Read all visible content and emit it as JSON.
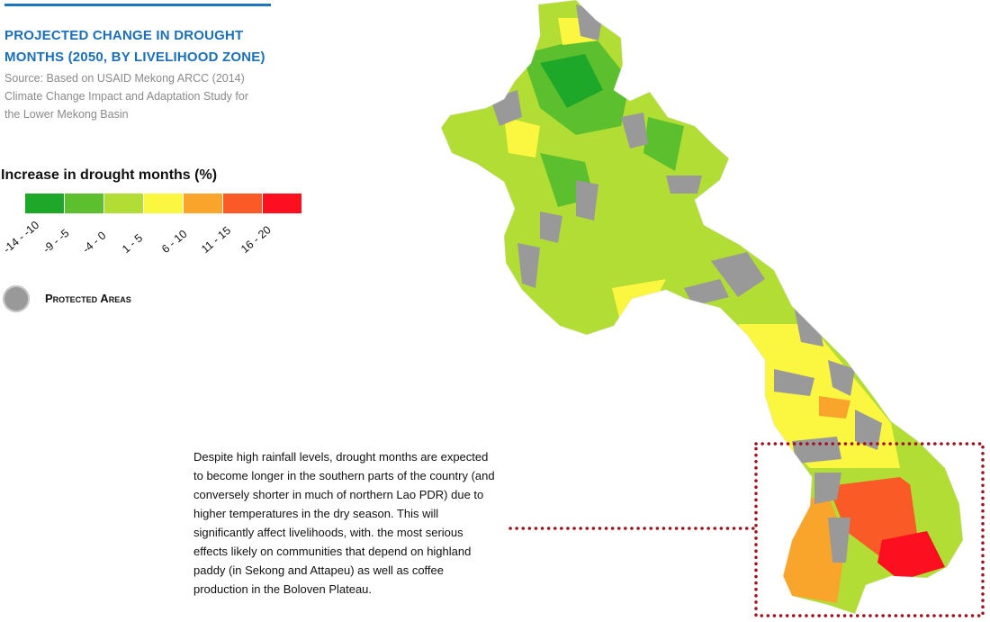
{
  "header": {
    "title_lines": [
      "PROJECTED CHANGE IN DROUGHT",
      "MONTHS (2050, BY LIVELIHOOD ZONE)"
    ],
    "source_lines": [
      "Source: Based on USAID Mekong ARCC (2014)",
      "Climate Change Impact and Adaptation Study for",
      "the Lower Mekong Basin"
    ]
  },
  "legend": {
    "title": "Increase in drought months (%)",
    "classes": [
      {
        "label": "-14 - -10",
        "color": "#1ea82a"
      },
      {
        "label": "-9 - -5",
        "color": "#5cbf2e"
      },
      {
        "label": "-4 - 0",
        "color": "#b2dd35"
      },
      {
        "label": "1 - 5",
        "color": "#fbf640"
      },
      {
        "label": "6 - 10",
        "color": "#f9a52c"
      },
      {
        "label": "11 - 15",
        "color": "#f95a26"
      },
      {
        "label": "16 - 20",
        "color": "#fc1020"
      }
    ],
    "protected_areas": {
      "label": "Protected Areas",
      "color": "#999999"
    }
  },
  "annotation": {
    "lines": [
      "Despite high rainfall levels, drought months are expected",
      "to become longer in the southern parts of the country (and",
      "conversely shorter in much of northern Lao PDR) due to",
      "higher temperatures in the dry season. This will",
      "significantly affect livelihoods, with. the most serious",
      "effects likely on communities that depend on highland",
      "paddy (in Sekong and Attapeu) as well as coffee",
      "production in the Boloven Plateau."
    ],
    "highlight_color": "#a01020"
  },
  "map": {
    "country": "Lao PDR",
    "highlighted_region": "southern Lao PDR (Sekong, Attapeu, Boloven Plateau)"
  }
}
